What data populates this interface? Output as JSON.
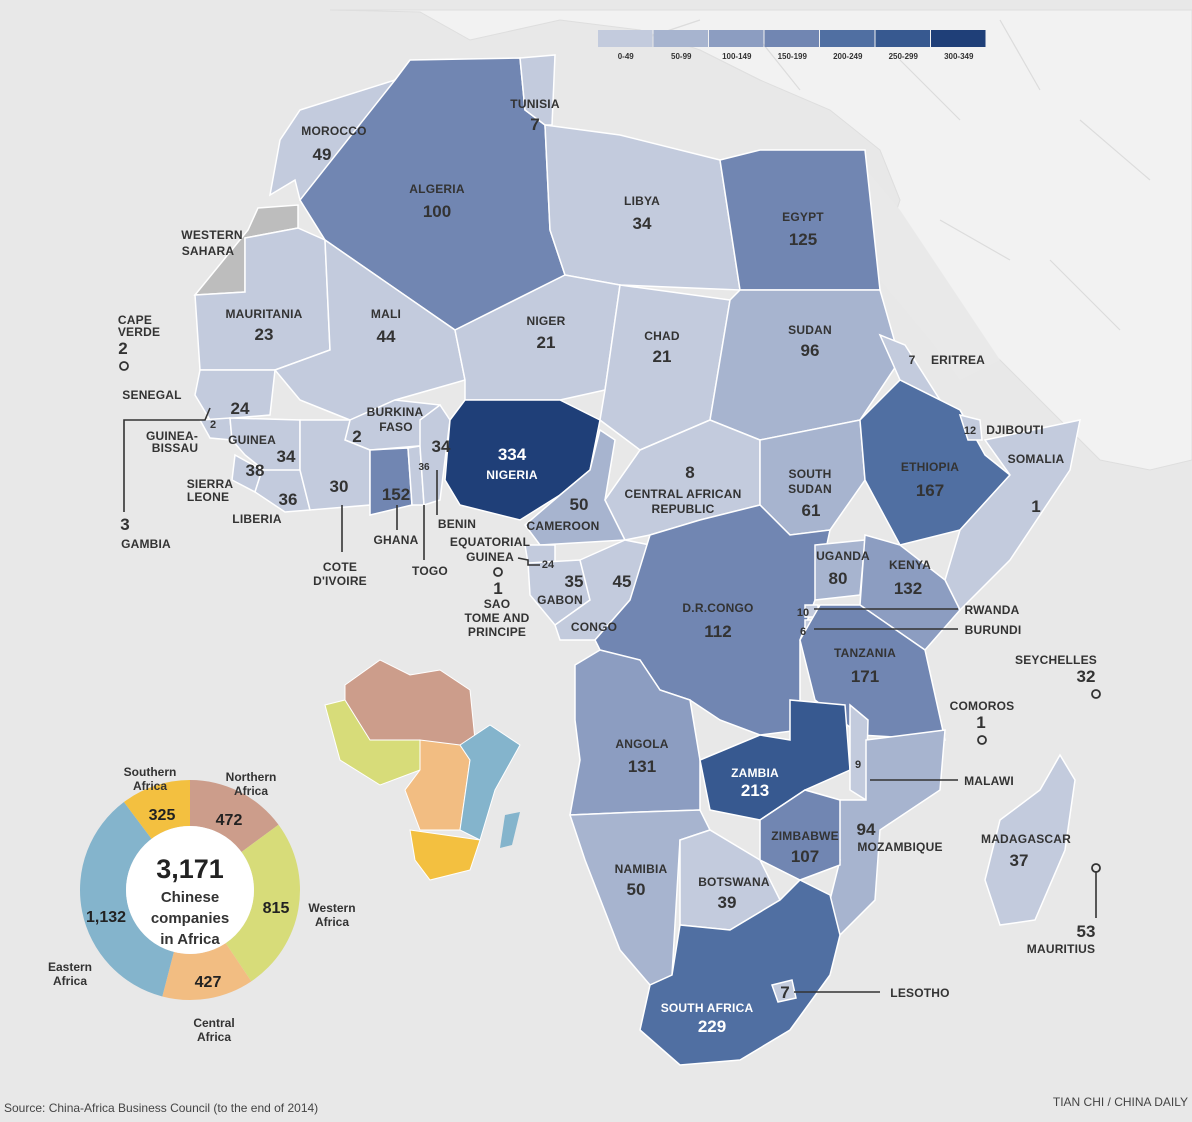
{
  "legend": {
    "bins": [
      {
        "label": "0-49",
        "color": "#c3cbdd"
      },
      {
        "label": "50-99",
        "color": "#a7b4cf"
      },
      {
        "label": "100-149",
        "color": "#8c9dc1"
      },
      {
        "label": "150-199",
        "color": "#7186b2"
      },
      {
        "label": "200-249",
        "color": "#506fa2"
      },
      {
        "label": "250-299",
        "color": "#375990"
      },
      {
        "label": "300-349",
        "color": "#1f3f78"
      }
    ]
  },
  "countries": [
    {
      "name": "MOROCCO",
      "value": "49"
    },
    {
      "name": "ALGERIA",
      "value": "100"
    },
    {
      "name": "TUNISIA",
      "value": "7"
    },
    {
      "name": "LIBYA",
      "value": "34"
    },
    {
      "name": "EGYPT",
      "value": "125"
    },
    {
      "name": "WESTERN SAHARA",
      "value": ""
    },
    {
      "name": "MAURITANIA",
      "value": "23"
    },
    {
      "name": "MALI",
      "value": "44"
    },
    {
      "name": "NIGER",
      "value": "21"
    },
    {
      "name": "CHAD",
      "value": "21"
    },
    {
      "name": "SUDAN",
      "value": "96"
    },
    {
      "name": "ERITREA",
      "value": "7"
    },
    {
      "name": "CAPE VERDE",
      "value": "2"
    },
    {
      "name": "SENEGAL",
      "value": "24"
    },
    {
      "name": "GUINEA-BISSAU",
      "value": "2"
    },
    {
      "name": "GUINEA",
      "value": "34"
    },
    {
      "name": "SIERRA LEONE",
      "value": "38"
    },
    {
      "name": "LIBERIA",
      "value": "36"
    },
    {
      "name": "GAMBIA",
      "value": "3"
    },
    {
      "name": "BURKINA FASO",
      "value": "2"
    },
    {
      "name": "COTE D'IVOIRE",
      "value": "30"
    },
    {
      "name": "GHANA",
      "value": "152"
    },
    {
      "name": "TOGO",
      "value": "36"
    },
    {
      "name": "BENIN",
      "value": "34"
    },
    {
      "name": "NIGERIA",
      "value": "334"
    },
    {
      "name": "CAMEROON",
      "value": "50"
    },
    {
      "name": "CENTRAL AFRICAN REPUBLIC",
      "value": "8"
    },
    {
      "name": "SOUTH SUDAN",
      "value": "61"
    },
    {
      "name": "ETHIOPIA",
      "value": "167"
    },
    {
      "name": "DJIBOUTI",
      "value": "12"
    },
    {
      "name": "SOMALIA",
      "value": "1"
    },
    {
      "name": "EQUATORIAL GUINEA",
      "value": "24"
    },
    {
      "name": "SAO TOME AND PRINCIPE",
      "value": "1"
    },
    {
      "name": "GABON",
      "value": "35"
    },
    {
      "name": "CONGO",
      "value": "45"
    },
    {
      "name": "D.R.CONGO",
      "value": "112"
    },
    {
      "name": "UGANDA",
      "value": "80"
    },
    {
      "name": "KENYA",
      "value": "132"
    },
    {
      "name": "RWANDA",
      "value": "10"
    },
    {
      "name": "BURUNDI",
      "value": "6"
    },
    {
      "name": "TANZANIA",
      "value": "171"
    },
    {
      "name": "SEYCHELLES",
      "value": "32"
    },
    {
      "name": "COMOROS",
      "value": "1"
    },
    {
      "name": "ANGOLA",
      "value": "131"
    },
    {
      "name": "ZAMBIA",
      "value": "213"
    },
    {
      "name": "MALAWI",
      "value": "9"
    },
    {
      "name": "MOZAMBIQUE",
      "value": "94"
    },
    {
      "name": "ZIMBABWE",
      "value": "107"
    },
    {
      "name": "MADAGASCAR",
      "value": "37"
    },
    {
      "name": "NAMIBIA",
      "value": "50"
    },
    {
      "name": "BOTSWANA",
      "value": "39"
    },
    {
      "name": "SOUTH AFRICA",
      "value": "229"
    },
    {
      "name": "LESOTHO",
      "value": "7"
    },
    {
      "name": "MAURITIUS",
      "value": "53"
    }
  ],
  "chart_data": {
    "type": "pie",
    "title": "3,171",
    "subtitle": "Chinese companies in Africa",
    "total": 3171,
    "categories": [
      "Northern Africa",
      "Western Africa",
      "Central Africa",
      "Eastern Africa",
      "Southern Africa"
    ],
    "values": [
      472,
      815,
      427,
      1132,
      325
    ],
    "colors": [
      "#cc9d8b",
      "#d7dc79",
      "#f2bd82",
      "#84b4cc",
      "#f3c040"
    ]
  },
  "regions_colors": [
    "#cc9d8b",
    "#d7dc79",
    "#f2bd82",
    "#84b4cc",
    "#f3c040"
  ],
  "footer": {
    "source": "Source: China-Africa Business Council (to the end of 2014)",
    "credit": "TIAN CHI / CHINA DAILY"
  }
}
